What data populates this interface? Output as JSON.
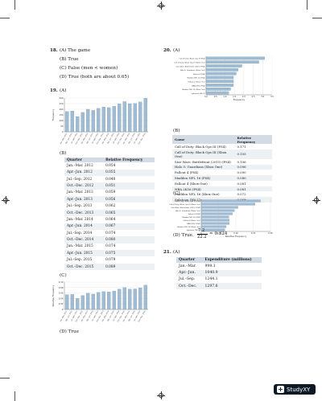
{
  "left": {
    "q18": {
      "num": "18.",
      "a": "(A) The game",
      "b": "(B) True",
      "c": "(C) False (men < women)",
      "d": "(D) True (both are about 0.65)"
    },
    "q19": {
      "num": "19.",
      "a": "(A)",
      "b": "(B)",
      "c": "(C)",
      "d": "(D) True"
    },
    "freq_table": {
      "headers": [
        "Quarter",
        "Relative Frequency"
      ],
      "rows": [
        [
          "Jan.–Mar. 2012",
          "0.054"
        ],
        [
          "Apr.–Jun. 2012",
          "0.055"
        ],
        [
          "Jul.–Sep. 2012",
          "0.040"
        ],
        [
          "Oct.–Dec. 2012",
          "0.051"
        ],
        [
          "Jan.–Mar. 2013",
          "0.059"
        ],
        [
          "Apr.–Jun. 2013",
          "0.056"
        ],
        [
          "Jul.–Sep. 2013",
          "0.062"
        ],
        [
          "Oct.–Dec. 2013",
          "0.065"
        ],
        [
          "Jan.–Mar. 2014",
          "0.064"
        ],
        [
          "Apr.–Jun. 2014",
          "0.067"
        ],
        [
          "Jul.–Sep. 2014",
          "0.074"
        ],
        [
          "Oct.–Dec. 2014",
          "0.080"
        ],
        [
          "Jan.–Mar. 2015",
          "0.074"
        ],
        [
          "Apr.–Jun. 2015",
          "0.075"
        ],
        [
          "Jul.–Sep. 2015",
          "0.079"
        ],
        [
          "Oct.–Dec. 2015",
          "0.089"
        ]
      ]
    }
  },
  "right": {
    "q20": {
      "num": "20.",
      "a": "(A)",
      "b": "(B)",
      "c": "(C)",
      "d_prefix": "(D) True.",
      "d_num": "7.2",
      "d_den": "22.2",
      "d_result": "≈ 0.324"
    },
    "game_table": {
      "headers": [
        "Game",
        "Relative Frequency"
      ],
      "rows": [
        [
          "Call of Duty: Black Ops III (PS4)",
          "0.171"
        ],
        [
          "Call of Duty: Black Ops III (Xbox One)",
          "0.155"
        ],
        [
          "Star Wars: Battlefront (2015) (PS4)",
          "0.106"
        ],
        [
          "Halo 5: Guardians (Xbox One)",
          "0.096"
        ],
        [
          "Fallout 4 (PS4)",
          "0.090"
        ],
        [
          "Madden NFL 16 (PS4)",
          "0.080"
        ],
        [
          "Fallout 4 (Xbox One)",
          "0.081"
        ],
        [
          "NBA 2K16 (PS4)",
          "0.081"
        ],
        [
          "Madden NFL 16 (Xbox One)",
          "0.072"
        ],
        [
          "Splatoon (Wii U)",
          "0.068"
        ]
      ]
    },
    "q21": {
      "num": "21.",
      "a": "(A)"
    },
    "sales_table": {
      "headers": [
        "Quarter",
        "Expenditure (millions)"
      ],
      "rows": [
        [
          "Jan.–Mar.",
          "998.1"
        ],
        [
          "Apr.–Jun.",
          "1040.9"
        ],
        [
          "Jul.–Sep.",
          "1244.1"
        ],
        [
          "Oct.–Dec.",
          "1297.6"
        ]
      ]
    }
  },
  "watermark": {
    "label": "StudyXY"
  },
  "chart_data": [
    {
      "type": "bar",
      "ylabel": "Frequency",
      "ylim": [
        0,
        300
      ],
      "yticks": [
        "0",
        "50",
        "100",
        "150",
        "200",
        "250",
        "300"
      ],
      "categories": [
        "Jan.–Mar. 2012",
        "Apr.–Jun. 2012",
        "Jul.–Sep. 2012",
        "Oct.–Dec. 2012",
        "Jan.–Mar. 2013",
        "Apr.–Jun. 2013",
        "Jul.–Sep. 2013",
        "Oct.–Dec. 2013",
        "Jan.–Mar. 2014",
        "Apr.–Jun. 2014",
        "Jul.–Sep. 2014",
        "Oct.–Dec. 2014",
        "Jan.–Mar. 2015",
        "Apr.–Jun. 2015",
        "Jul.–Sep. 2015",
        "Oct.–Dec. 2015"
      ],
      "values": [
        180,
        185,
        135,
        172,
        200,
        190,
        208,
        220,
        215,
        226,
        248,
        268,
        250,
        252,
        265,
        298
      ]
    },
    {
      "type": "bar",
      "ylabel": "Relative Frequency",
      "ylim": [
        0,
        0.1
      ],
      "yticks": [
        "0",
        "0.02",
        "0.04",
        "0.06",
        "0.08",
        "0.10"
      ],
      "categories": [
        "Jan.–Mar. 2012",
        "Apr.–Jun. 2012",
        "Jul.–Sep. 2012",
        "Oct.–Dec. 2012",
        "Jan.–Mar. 2013",
        "Apr.–Jun. 2013",
        "Jul.–Sep. 2013",
        "Oct.–Dec. 2013",
        "Jan.–Mar. 2014",
        "Apr.–Jun. 2014",
        "Jul.–Sep. 2014",
        "Oct.–Dec. 2014",
        "Jan.–Mar. 2015",
        "Apr.–Jun. 2015",
        "Jul.–Sep. 2015",
        "Oct.–Dec. 2015"
      ],
      "values": [
        0.054,
        0.055,
        0.04,
        0.051,
        0.059,
        0.056,
        0.062,
        0.065,
        0.064,
        0.067,
        0.074,
        0.08,
        0.074,
        0.075,
        0.079,
        0.089
      ]
    },
    {
      "type": "bar",
      "orientation": "horizontal",
      "xlabel": "Frequency",
      "xlim": [
        0,
        3.5
      ],
      "xticks": [
        "0.0",
        "0.5",
        "1.0",
        "1.5",
        "2.0",
        "2.5",
        "3.0",
        "3.5"
      ],
      "categories": [
        "Call of Duty: Black Ops III (PS4)",
        "Call of Duty: Black Ops III (Xbox One)",
        "Star Wars: Battlefront (2015) (PS4)",
        "Halo 5: Guardians (Xbox One)",
        "Fallout 4 (PS4)",
        "Madden NFL 16 (PS4)",
        "Fallout 4 (Xbox One)",
        "NBA 2K16 (PS4)",
        "Madden NFL 16 (Xbox One)",
        "Splatoon (Wii U)"
      ],
      "values": [
        3.1,
        2.8,
        1.9,
        1.7,
        1.6,
        1.45,
        1.45,
        1.45,
        1.3,
        1.2
      ]
    },
    {
      "type": "bar",
      "orientation": "horizontal",
      "xlabel": "Relative Frequency",
      "xlim": [
        0,
        0.2
      ],
      "xticks": [
        "0",
        "0.05",
        "0.10",
        "0.15",
        "0.20"
      ],
      "categories": [
        "Call of Duty: Black Ops III (PS4)",
        "Call of Duty: Black Ops III (Xbox One)",
        "Star Wars: Battlefront (2015) (PS4)",
        "Halo 5: Guardians (Xbox One)",
        "Fallout 4 (PS4)",
        "Madden NFL 16 (PS4)",
        "Fallout 4 (Xbox One)",
        "NBA 2K16 (PS4)",
        "Madden NFL 16 (Xbox One)",
        "Splatoon (Wii U)"
      ],
      "values": [
        0.171,
        0.155,
        0.106,
        0.096,
        0.09,
        0.08,
        0.081,
        0.081,
        0.072,
        0.068
      ]
    }
  ]
}
